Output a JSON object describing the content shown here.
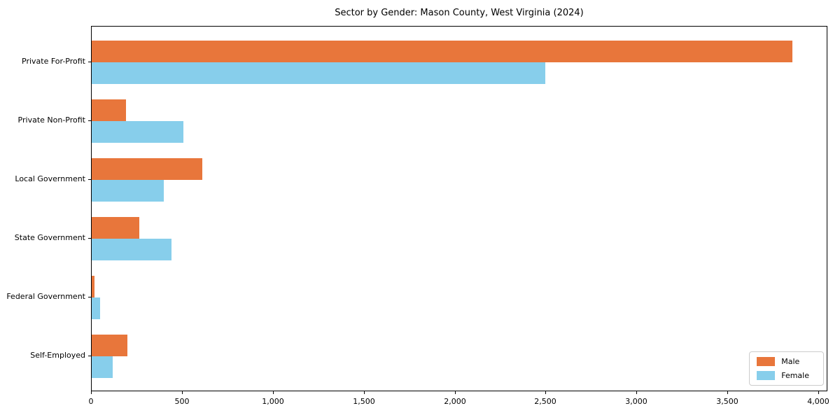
{
  "title": "Sector by Gender: Mason County, West Virginia (2024)",
  "chart_data": {
    "type": "bar",
    "orientation": "horizontal",
    "title": "Sector by Gender: Mason County, West Virginia (2024)",
    "categories": [
      "Private For-Profit",
      "Private Non-Profit",
      "Local Government",
      "State Government",
      "Federal Government",
      "Self-Employed"
    ],
    "series": [
      {
        "name": "Male",
        "color": "#E8763B",
        "values": [
          3855,
          190,
          610,
          260,
          15,
          195
        ]
      },
      {
        "name": "Female",
        "color": "#87CEEB",
        "values": [
          2495,
          505,
          395,
          440,
          45,
          115
        ]
      }
    ],
    "xlim": [
      0,
      4050
    ],
    "xticks": [
      0,
      500,
      1000,
      1500,
      2000,
      2500,
      3000,
      3500,
      4000
    ],
    "xtick_labels": [
      "0",
      "500",
      "1,000",
      "1,500",
      "2,000",
      "2,500",
      "3,000",
      "3,500",
      "4,000"
    ],
    "xlabel": "",
    "ylabel": "",
    "grid": false,
    "legend_position": "lower right"
  }
}
